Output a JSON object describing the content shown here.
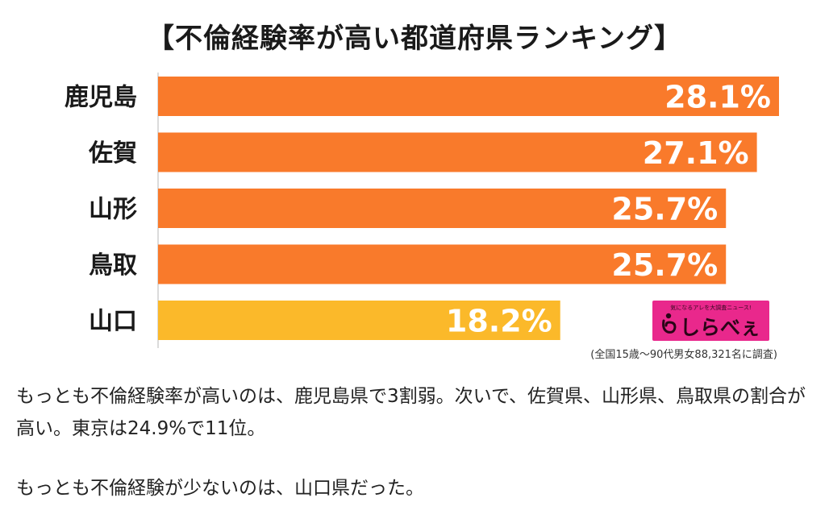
{
  "chart_data": {
    "type": "bar",
    "orientation": "horizontal",
    "title": "【不倫経験率が高い都道府県ランキング】",
    "categories": [
      "鹿児島",
      "佐賀",
      "山形",
      "鳥取",
      "山口"
    ],
    "values": [
      28.1,
      27.1,
      25.7,
      25.7,
      18.2
    ],
    "value_labels": [
      "28.1%",
      "27.1%",
      "25.7%",
      "25.7%",
      "18.2%"
    ],
    "bar_colors": [
      "#f97a2b",
      "#f97a2b",
      "#f97a2b",
      "#f97a2b",
      "#fbb92a"
    ],
    "xlim": [
      0,
      28.1
    ],
    "grid": false,
    "legend": "none",
    "source_note": "(全国15歳〜90代男女88,321名に調査)"
  },
  "logo": {
    "tagline": "気になるアレを大調査ニュース!",
    "name": "しらべぇ",
    "background": "#e9288c"
  },
  "article": {
    "paragraph1": "もっとも不倫経験率が高いのは、鹿児島県で3割弱。次いで、佐賀県、山形県、鳥取県の割合が高い。東京は24.9%で11位。",
    "paragraph2": "もっとも不倫経験が少ないのは、山口県だった。"
  }
}
